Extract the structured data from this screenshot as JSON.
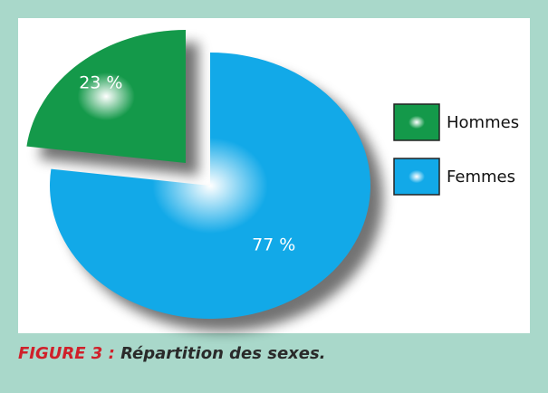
{
  "chart_data": {
    "type": "pie",
    "categories": [
      "Hommes",
      "Femmes"
    ],
    "values": [
      23,
      77
    ],
    "value_labels": [
      "23 %",
      "77 %"
    ],
    "colors": [
      "#14994a",
      "#12a9e8"
    ],
    "explode": [
      true,
      false
    ],
    "legend": "right"
  },
  "figure": {
    "label": "FIGURE 3 :",
    "caption": "Répartition des sexes."
  }
}
